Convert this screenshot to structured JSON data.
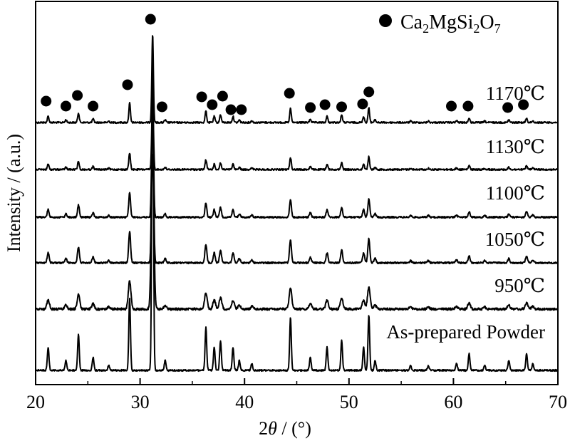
{
  "chart_data": {
    "type": "line",
    "xlabel_prefix": "2",
    "xlabel_var": "θ",
    "xlabel_suffix": " / (°)",
    "ylabel": "Intensity / (a.u.)",
    "xlim": [
      20,
      70
    ],
    "xticks": [
      20,
      30,
      40,
      50,
      60,
      70
    ],
    "x_tick_labels": [
      "20",
      "30",
      "40",
      "50",
      "60",
      "70"
    ],
    "y_ticks_shown": false,
    "grid": false,
    "legend": {
      "marker": "filled-circle",
      "parts": [
        {
          "t": "Ca",
          "sub": false
        },
        {
          "t": "2",
          "sub": true
        },
        {
          "t": "MgSi",
          "sub": false
        },
        {
          "t": "2",
          "sub": true
        },
        {
          "t": "O",
          "sub": false
        },
        {
          "t": "7",
          "sub": true
        }
      ],
      "placement": "top-right"
    },
    "phase_peak_markers_2theta": [
      21.0,
      22.9,
      24.0,
      25.5,
      28.8,
      31.0,
      32.1,
      35.9,
      36.9,
      37.9,
      38.7,
      39.7,
      44.3,
      46.3,
      47.7,
      49.3,
      51.3,
      51.9,
      59.8,
      61.4,
      65.2,
      66.7
    ],
    "reflections": [
      {
        "two_theta": 21.2,
        "rel_intensity": 0.07
      },
      {
        "two_theta": 22.9,
        "rel_intensity": 0.03
      },
      {
        "two_theta": 24.1,
        "rel_intensity": 0.11
      },
      {
        "two_theta": 25.5,
        "rel_intensity": 0.04
      },
      {
        "two_theta": 27.0,
        "rel_intensity": 0.015
      },
      {
        "two_theta": 29.0,
        "rel_intensity": 0.22
      },
      {
        "two_theta": 31.2,
        "rel_intensity": 1.0
      },
      {
        "two_theta": 32.4,
        "rel_intensity": 0.03
      },
      {
        "two_theta": 36.3,
        "rel_intensity": 0.13
      },
      {
        "two_theta": 37.1,
        "rel_intensity": 0.07
      },
      {
        "two_theta": 37.7,
        "rel_intensity": 0.09
      },
      {
        "two_theta": 38.9,
        "rel_intensity": 0.07
      },
      {
        "two_theta": 39.5,
        "rel_intensity": 0.03
      },
      {
        "two_theta": 40.7,
        "rel_intensity": 0.02
      },
      {
        "two_theta": 44.4,
        "rel_intensity": 0.16
      },
      {
        "two_theta": 46.3,
        "rel_intensity": 0.04
      },
      {
        "two_theta": 47.9,
        "rel_intensity": 0.07
      },
      {
        "two_theta": 49.3,
        "rel_intensity": 0.09
      },
      {
        "two_theta": 51.4,
        "rel_intensity": 0.07
      },
      {
        "two_theta": 51.9,
        "rel_intensity": 0.17
      },
      {
        "two_theta": 52.5,
        "rel_intensity": 0.03
      },
      {
        "two_theta": 55.9,
        "rel_intensity": 0.015
      },
      {
        "two_theta": 57.6,
        "rel_intensity": 0.015
      },
      {
        "two_theta": 60.3,
        "rel_intensity": 0.02
      },
      {
        "two_theta": 61.5,
        "rel_intensity": 0.05
      },
      {
        "two_theta": 63.0,
        "rel_intensity": 0.015
      },
      {
        "two_theta": 65.3,
        "rel_intensity": 0.03
      },
      {
        "two_theta": 67.0,
        "rel_intensity": 0.05
      },
      {
        "two_theta": 67.6,
        "rel_intensity": 0.02
      }
    ],
    "series": [
      {
        "label": "1170℃",
        "sharpness": 1.0
      },
      {
        "label": "1130℃",
        "sharpness": 0.95
      },
      {
        "label": "1100℃",
        "sharpness": 0.85
      },
      {
        "label": "1050℃",
        "sharpness": 0.8
      },
      {
        "label": "950℃",
        "sharpness": 0.6
      },
      {
        "label": "As-prepared Powder",
        "sharpness": 0.95
      }
    ]
  }
}
